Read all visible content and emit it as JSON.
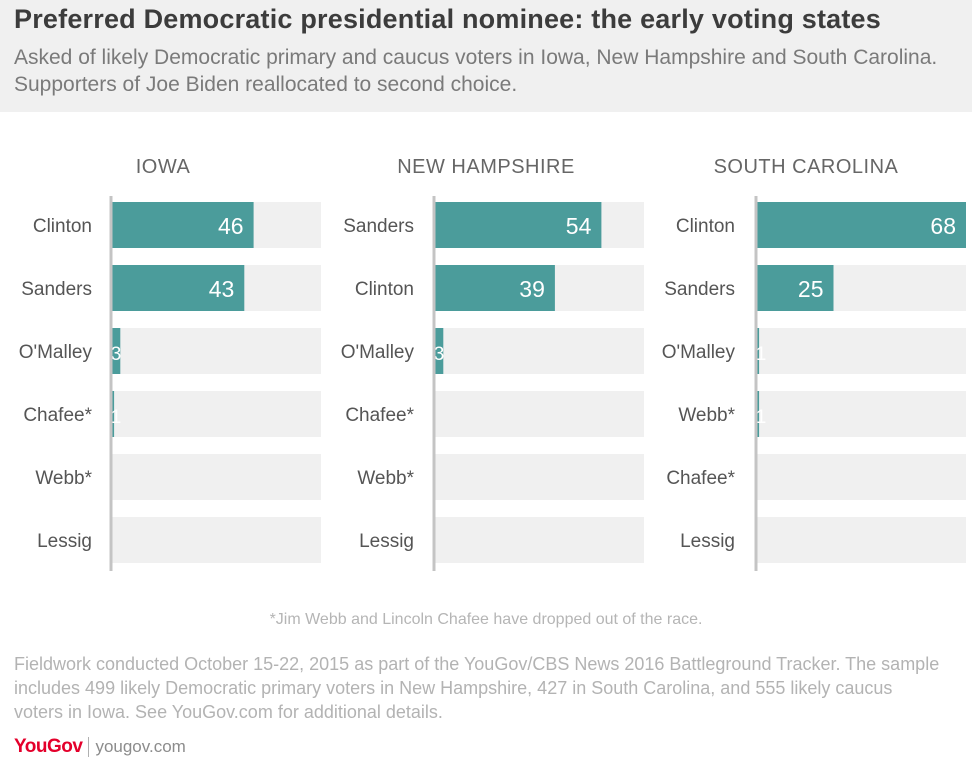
{
  "title": "Preferred Democratic presidential nominee: the early voting states",
  "subtitle": "Asked of likely Democratic primary and caucus voters in Iowa, New Hampshire and South Carolina. Supporters of Joe Biden reallocated to second choice.",
  "footnote": "*Jim Webb and Lincoln Chafee have dropped out of the race.",
  "source_note": "Fieldwork conducted October 15-22, 2015 as part of the YouGov/CBS News 2016 Battleground Tracker. The sample includes 499 likely Democratic primary voters in New Hampshire, 427 in South Carolina, and 555 likely caucus voters in Iowa. See YouGov.com for additional details.",
  "brand": {
    "logo": "YouGov",
    "url": "yougov.com"
  },
  "colors": {
    "bar": "#4b9c9b",
    "track": "#f0f0f0",
    "axis": "#c4c4c4",
    "label_in_bar": "#ffffff",
    "category_label": "#555555"
  },
  "chart_data": [
    {
      "type": "bar",
      "orientation": "horizontal",
      "title": "IOWA",
      "categories": [
        "Clinton",
        "Sanders",
        "O'Malley",
        "Chafee*",
        "Webb*",
        "Lessig"
      ],
      "values": [
        46,
        43,
        3,
        1,
        0,
        0
      ],
      "data_labels": [
        "46",
        "43",
        "3",
        "1",
        "",
        ""
      ],
      "xlim": [
        0,
        100
      ],
      "grid": false,
      "legend": "none"
    },
    {
      "type": "bar",
      "orientation": "horizontal",
      "title": "NEW HAMPSHIRE",
      "categories": [
        "Sanders",
        "Clinton",
        "O'Malley",
        "Chafee*",
        "Webb*",
        "Lessig"
      ],
      "values": [
        54,
        39,
        3,
        0,
        0,
        0
      ],
      "data_labels": [
        "54",
        "39",
        "3",
        "",
        "",
        ""
      ],
      "xlim": [
        0,
        100
      ],
      "grid": false,
      "legend": "none"
    },
    {
      "type": "bar",
      "orientation": "horizontal",
      "title": "SOUTH CAROLINA",
      "categories": [
        "Clinton",
        "Sanders",
        "O'Malley",
        "Webb*",
        "Chafee*",
        "Lessig"
      ],
      "values": [
        68,
        25,
        1,
        1,
        0,
        0
      ],
      "data_labels": [
        "68",
        "25",
        "1",
        "1",
        "",
        ""
      ],
      "xlim": [
        0,
        100
      ],
      "grid": false,
      "legend": "none"
    }
  ]
}
